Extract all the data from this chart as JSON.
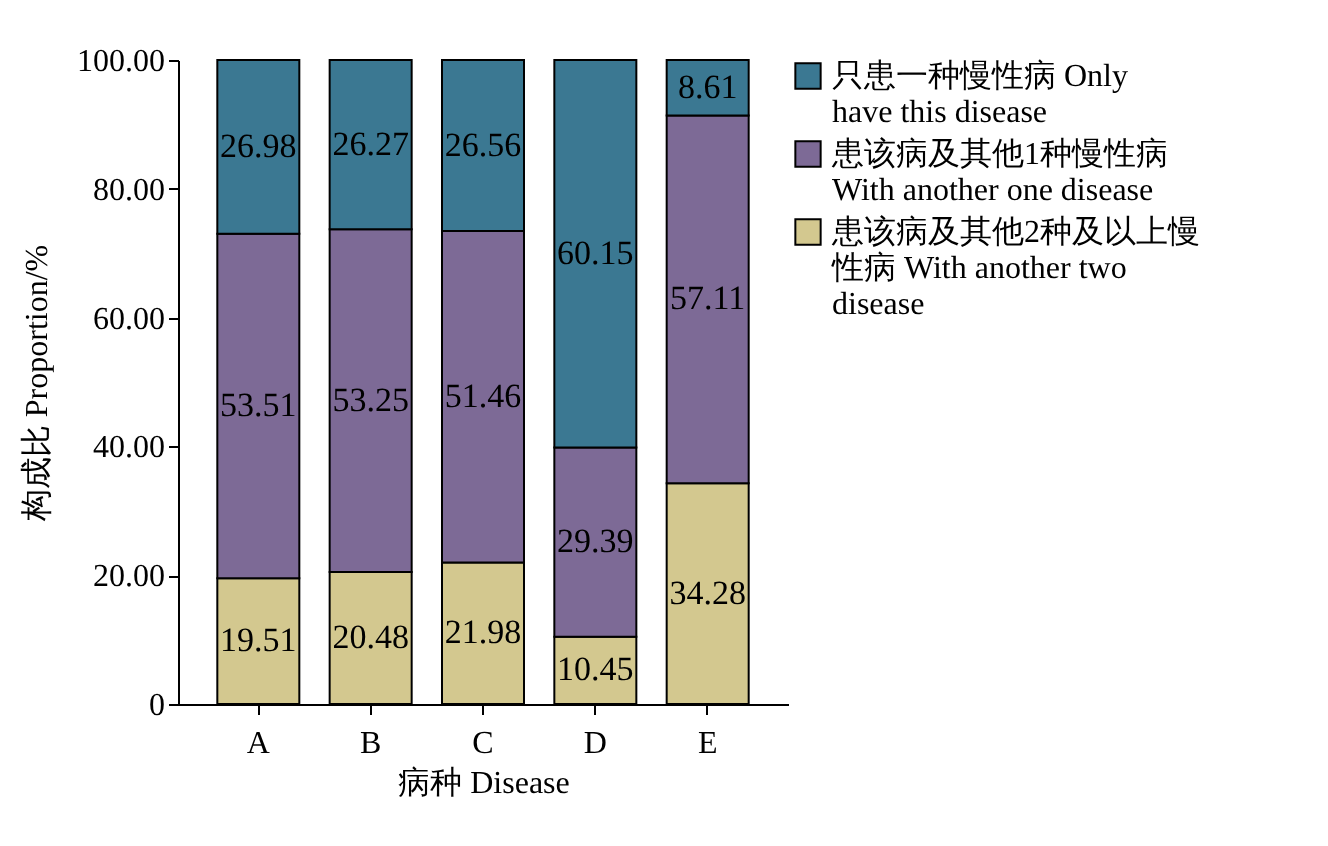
{
  "chart_data": {
    "type": "bar",
    "stacked": true,
    "xlabel": "病种 Disease",
    "ylabel": "构成比 Proportion/%",
    "categories": [
      "A",
      "B",
      "C",
      "D",
      "E"
    ],
    "ylim": [
      0,
      100
    ],
    "yticks": [
      {
        "value": 0,
        "label": "0"
      },
      {
        "value": 20,
        "label": "20.00"
      },
      {
        "value": 40,
        "label": "40.00"
      },
      {
        "value": 60,
        "label": "60.00"
      },
      {
        "value": 80,
        "label": "80.00"
      },
      {
        "value": 100,
        "label": "100.00"
      }
    ],
    "grid": false,
    "legend": "right",
    "data_labels": true,
    "series": [
      {
        "name": "患该病及其他2种及以上慢性病 With another two disease",
        "color": "#d3c88f",
        "values": [
          19.51,
          20.48,
          21.98,
          10.45,
          34.28
        ]
      },
      {
        "name": "患该病及其他1种慢性病 With another one disease",
        "color": "#7d6a96",
        "values": [
          53.51,
          53.25,
          51.46,
          29.39,
          57.11
        ]
      },
      {
        "name": "只患一种慢性病 Only have this disease",
        "color": "#3b7892",
        "values": [
          26.98,
          26.27,
          26.56,
          60.15,
          8.61
        ]
      }
    ]
  }
}
